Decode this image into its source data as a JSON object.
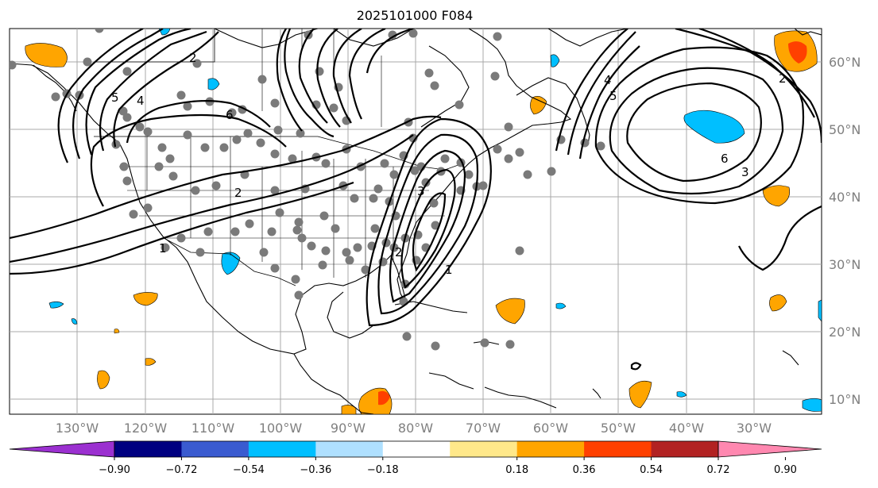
{
  "title": "2025101000 F084",
  "lon_labels": [
    "130°W",
    "120°W",
    "110°W",
    "100°W",
    "90°W",
    "80°W",
    "70°W",
    "60°W",
    "50°W",
    "40°W",
    "30°W"
  ],
  "lat_labels": [
    "60°N",
    "50°N",
    "40°N",
    "30°N",
    "20°N",
    "10°N"
  ],
  "colorbar": {
    "ticks": [
      "−0.90",
      "−0.72",
      "−0.54",
      "−0.36",
      "−0.18",
      "0.18",
      "0.36",
      "0.54",
      "0.72",
      "0.90"
    ],
    "colors": [
      "#9b30d0",
      "#000080",
      "#3a5bd0",
      "#00bfff",
      "#afe0ff",
      "#ffffff",
      "#ffe88a",
      "#ffa500",
      "#ff4000",
      "#b22222",
      "#ff88b0"
    ]
  },
  "contour_labels": [
    "2",
    "6",
    "5",
    "4",
    "2",
    "2",
    "3",
    "1",
    "4",
    "5",
    "6",
    "3",
    "2",
    "1"
  ],
  "colors": {
    "positive_fill": "#ffa500",
    "positive_core": "#ff4000",
    "negative_fill": "#00bfff",
    "observation": "#7a7a7a"
  }
}
